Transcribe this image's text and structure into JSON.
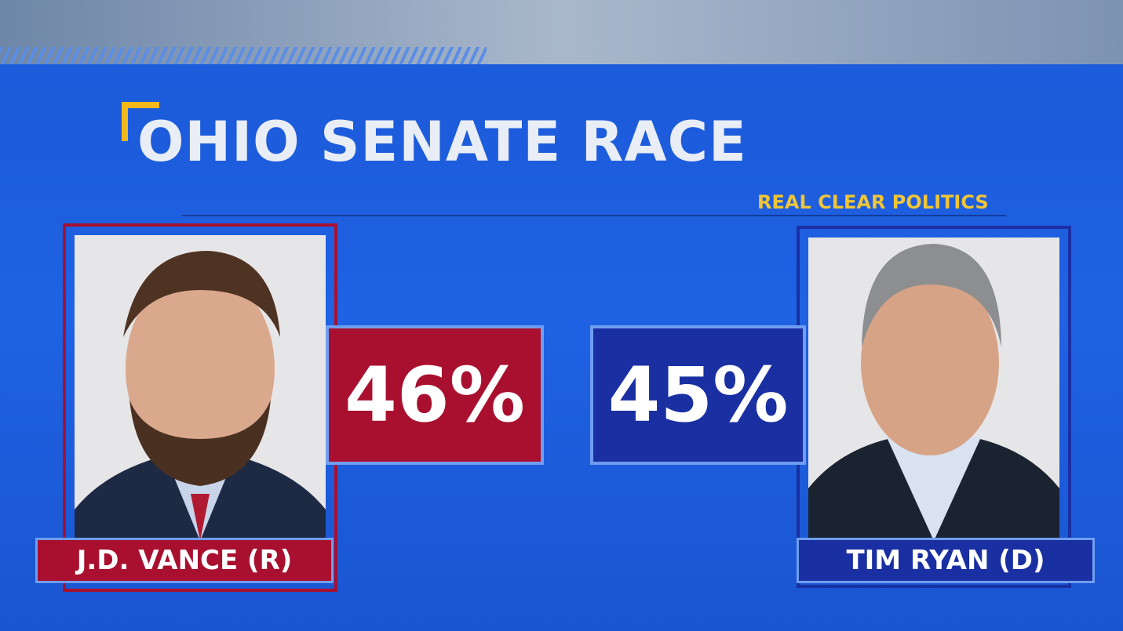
{
  "header": {
    "title": "OHIO SENATE RACE",
    "source": "REAL CLEAR POLITICS"
  },
  "candidates": [
    {
      "name": "J.D. VANCE (R)",
      "result": "46%"
    },
    {
      "name": "TIM RYAN (D)",
      "result": "45%"
    }
  ]
}
